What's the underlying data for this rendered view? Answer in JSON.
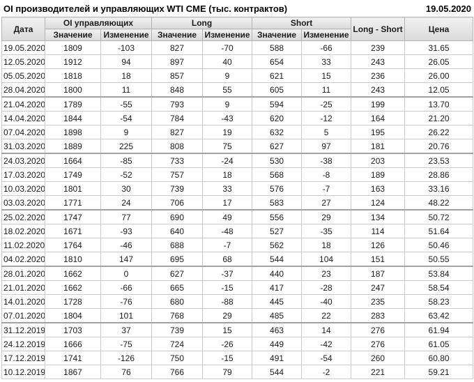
{
  "title": "OI производителей и управляющих WTI CME (тыс. контрактов)",
  "report_date": "19.05.2020",
  "colors": {
    "positive": "#1f9b1f",
    "negative": "#d22d2d",
    "header_bg": "#e4e4e4",
    "grid_border": "#c9c9c9"
  },
  "table": {
    "headers": {
      "date": "Дата",
      "oi_group": "OI управляющих",
      "long_group": "Long",
      "short_group": "Short",
      "long_short": "Long - Short",
      "price": "Цена",
      "value": "Значение",
      "change": "Изменение"
    },
    "rows": [
      [
        "19.05.2020",
        "1809",
        "-103",
        "827",
        "-70",
        "588",
        "-66",
        "239",
        "31.65"
      ],
      [
        "12.05.2020",
        "1912",
        "94",
        "897",
        "40",
        "654",
        "33",
        "243",
        "26.05"
      ],
      [
        "05.05.2020",
        "1818",
        "18",
        "857",
        "9",
        "621",
        "15",
        "236",
        "26.00"
      ],
      [
        "28.04.2020",
        "1800",
        "11",
        "848",
        "55",
        "605",
        "11",
        "243",
        "12.05"
      ],
      [
        "21.04.2020",
        "1789",
        "-55",
        "793",
        "9",
        "594",
        "-25",
        "199",
        "13.70"
      ],
      [
        "14.04.2020",
        "1844",
        "-54",
        "784",
        "-43",
        "620",
        "-12",
        "164",
        "21.20"
      ],
      [
        "07.04.2020",
        "1898",
        "9",
        "827",
        "19",
        "632",
        "5",
        "195",
        "26.22"
      ],
      [
        "31.03.2020",
        "1889",
        "225",
        "808",
        "75",
        "627",
        "97",
        "181",
        "20.76"
      ],
      [
        "24.03.2020",
        "1664",
        "-85",
        "733",
        "-24",
        "530",
        "-38",
        "203",
        "23.53"
      ],
      [
        "17.03.2020",
        "1749",
        "-52",
        "757",
        "18",
        "568",
        "-8",
        "189",
        "28.86"
      ],
      [
        "10.03.2020",
        "1801",
        "30",
        "739",
        "33",
        "576",
        "-7",
        "163",
        "33.16"
      ],
      [
        "03.03.2020",
        "1771",
        "24",
        "706",
        "17",
        "583",
        "27",
        "124",
        "48.22"
      ],
      [
        "25.02.2020",
        "1747",
        "77",
        "690",
        "49",
        "556",
        "29",
        "134",
        "50.72"
      ],
      [
        "18.02.2020",
        "1671",
        "-93",
        "640",
        "-48",
        "527",
        "-35",
        "114",
        "51.64"
      ],
      [
        "11.02.2020",
        "1764",
        "-46",
        "688",
        "-7",
        "562",
        "18",
        "126",
        "50.46"
      ],
      [
        "04.02.2020",
        "1810",
        "147",
        "695",
        "68",
        "544",
        "104",
        "151",
        "50.55"
      ],
      [
        "28.01.2020",
        "1662",
        "0",
        "627",
        "-37",
        "440",
        "23",
        "187",
        "53.84"
      ],
      [
        "21.01.2020",
        "1662",
        "-66",
        "665",
        "-15",
        "417",
        "-28",
        "247",
        "58.54"
      ],
      [
        "14.01.2020",
        "1728",
        "-76",
        "680",
        "-88",
        "445",
        "-40",
        "235",
        "58.23"
      ],
      [
        "07.01.2020",
        "1804",
        "101",
        "768",
        "29",
        "485",
        "22",
        "283",
        "63.42"
      ],
      [
        "31.12.2019",
        "1703",
        "37",
        "739",
        "15",
        "463",
        "14",
        "276",
        "61.94"
      ],
      [
        "24.12.2019",
        "1666",
        "-75",
        "724",
        "-26",
        "449",
        "-42",
        "276",
        "61.05"
      ],
      [
        "17.12.2019",
        "1741",
        "-126",
        "750",
        "-15",
        "491",
        "-54",
        "260",
        "60.80"
      ],
      [
        "10.12.2019",
        "1867",
        "76",
        "766",
        "79",
        "544",
        "-2",
        "221",
        "59.21"
      ]
    ]
  }
}
